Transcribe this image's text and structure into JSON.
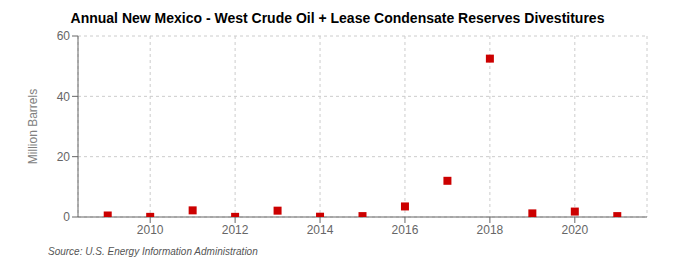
{
  "chart_data": {
    "type": "scatter",
    "title": "Annual New Mexico - West Crude Oil + Lease Condensate Reserves Divestitures",
    "y_label": "Million Barrels",
    "annotation": "Source: U.S. Energy Information Administration",
    "x": [
      2009,
      2010,
      2011,
      2012,
      2013,
      2014,
      2015,
      2016,
      2017,
      2018,
      2019,
      2020,
      2021
    ],
    "values": [
      0.5,
      0.05,
      2.2,
      0.05,
      2.1,
      0.1,
      0.3,
      3.5,
      12.0,
      52.5,
      1.2,
      1.8,
      0.3
    ],
    "color": "#CC0000",
    "marker": "square",
    "xlim": [
      2008.3,
      2021.7
    ],
    "xticks": [
      2010,
      2012,
      2014,
      2016,
      2018,
      2020
    ],
    "ylim": [
      0,
      60
    ],
    "yticks": [
      0,
      20,
      40,
      60
    ],
    "grid": true
  }
}
